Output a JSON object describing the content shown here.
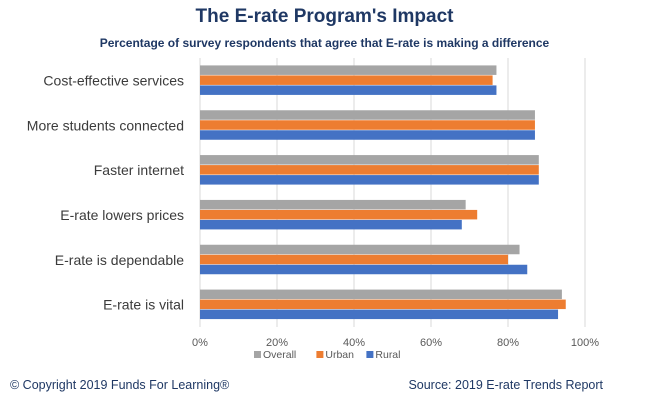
{
  "title": "The E-rate Program's Impact",
  "subtitle": "Percentage of survey respondents that agree that E-rate is making a difference",
  "footer": {
    "copyright": "© Copyright 2019 Funds For Learning®",
    "source": "Source: 2019 E-rate Trends Report"
  },
  "chart_data": {
    "type": "bar",
    "orientation": "horizontal",
    "categories": [
      "Cost-effective services",
      "More students connected",
      "Faster internet",
      "E-rate lowers prices",
      "E-rate is dependable",
      "E-rate is vital"
    ],
    "series": [
      {
        "name": "Overall",
        "color": "#a5a5a5",
        "values": [
          77,
          87,
          88,
          69,
          83,
          94
        ]
      },
      {
        "name": "Urban",
        "color": "#ed7d31",
        "values": [
          76,
          87,
          88,
          72,
          80,
          95
        ]
      },
      {
        "name": "Rural",
        "color": "#4472c4",
        "values": [
          77,
          87,
          88,
          68,
          85,
          93
        ]
      }
    ],
    "xlim": [
      0,
      100
    ],
    "x_ticks": [
      "0%",
      "20%",
      "40%",
      "60%",
      "80%",
      "100%"
    ],
    "grid": true,
    "legend_position": "bottom"
  }
}
